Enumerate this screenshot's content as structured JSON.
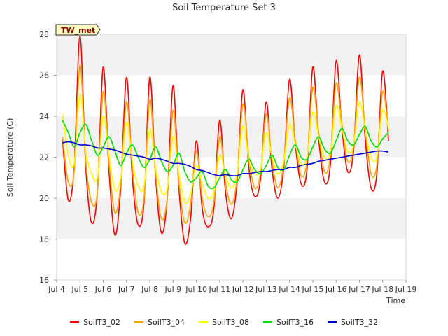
{
  "chart_data": {
    "type": "line",
    "title": "Soil Temperature Set 3",
    "xlabel": "Time",
    "ylabel": "Soil Temperature (C)",
    "station_badge": "TW_met",
    "x_tick_labels": [
      "Jul 4",
      "Jul 5",
      "Jul 6",
      "Jul 7",
      "Jul 8",
      "Jul 9",
      "Jul 10",
      "Jul 11",
      "Jul 12",
      "Jul 13",
      "Jul 14",
      "Jul 15",
      "Jul 16",
      "Jul 17",
      "Jul 18",
      "Jul 19"
    ],
    "x_range_days": [
      4,
      19
    ],
    "y_ticks": [
      16,
      18,
      20,
      22,
      24,
      26,
      28
    ],
    "ylim": [
      16,
      28
    ],
    "grid": "horizontal alternating bands",
    "legend_position": "bottom",
    "time_step_days": 0.25,
    "series": [
      {
        "name": "SoilT3_02",
        "color": "#ff0000",
        "x_start_day": 4.25,
        "values": [
          22.9,
          19.9,
          21.5,
          27.9,
          21.5,
          18.8,
          20.3,
          26.4,
          21.3,
          18.2,
          20.5,
          25.9,
          21.0,
          18.7,
          19.8,
          25.9,
          21.0,
          18.3,
          20.0,
          25.5,
          20.5,
          17.8,
          19.0,
          22.8,
          19.5,
          18.6,
          19.5,
          23.8,
          20.3,
          19.0,
          20.8,
          25.3,
          21.5,
          20.1,
          20.9,
          24.7,
          21.4,
          20.0,
          21.5,
          25.8,
          22.6,
          20.7,
          21.4,
          26.4,
          22.9,
          20.8,
          21.6,
          26.7,
          23.4,
          21.3,
          22.3,
          27.0,
          22.9,
          20.5,
          21.2,
          26.2,
          22.8
        ]
      },
      {
        "name": "SoilT3_04",
        "color": "#ffa500",
        "x_start_day": 4.25,
        "values": [
          23.0,
          20.8,
          21.3,
          26.5,
          21.8,
          19.8,
          20.3,
          25.2,
          21.7,
          19.3,
          20.7,
          24.7,
          21.5,
          19.3,
          20.0,
          24.8,
          21.2,
          19.0,
          20.0,
          24.3,
          20.8,
          18.8,
          19.7,
          22.3,
          20.0,
          19.1,
          19.8,
          23.0,
          20.8,
          19.7,
          21.0,
          24.6,
          22.0,
          20.5,
          21.2,
          24.1,
          21.8,
          20.5,
          21.7,
          24.9,
          22.8,
          21.1,
          21.8,
          25.4,
          23.2,
          21.3,
          22.0,
          25.6,
          23.6,
          21.8,
          22.5,
          25.9,
          23.4,
          21.2,
          21.6,
          25.2,
          23.2
        ]
      },
      {
        "name": "SoilT3_08",
        "color": "#ffff00",
        "x_start_day": 4.25,
        "values": [
          24.1,
          22.1,
          21.7,
          25.1,
          22.3,
          21.2,
          21.0,
          24.0,
          22.1,
          20.4,
          21.0,
          23.7,
          21.8,
          20.6,
          20.6,
          23.4,
          21.5,
          20.3,
          20.5,
          23.0,
          21.2,
          19.8,
          20.2,
          21.6,
          20.7,
          20.0,
          20.3,
          22.1,
          21.1,
          20.5,
          21.2,
          23.5,
          21.9,
          21.2,
          21.4,
          23.2,
          22.0,
          21.2,
          21.8,
          23.6,
          22.6,
          21.7,
          22.0,
          24.2,
          23.0,
          22.0,
          22.2,
          24.5,
          23.4,
          22.3,
          22.6,
          24.7,
          23.3,
          22.0,
          22.0,
          24.3,
          23.4
        ]
      },
      {
        "name": "SoilT3_16",
        "color": "#00dd00",
        "x_start_day": 4.25,
        "values": [
          23.8,
          23.2,
          22.5,
          23.2,
          23.6,
          22.8,
          22.1,
          22.5,
          23.0,
          22.3,
          21.6,
          22.2,
          22.6,
          22.0,
          21.5,
          21.9,
          22.5,
          21.8,
          21.3,
          21.6,
          22.2,
          21.3,
          20.8,
          21.0,
          21.3,
          20.6,
          20.5,
          21.0,
          21.4,
          20.9,
          20.8,
          21.4,
          21.9,
          21.4,
          21.2,
          21.6,
          22.1,
          21.5,
          21.4,
          22.1,
          22.6,
          22.0,
          21.9,
          22.5,
          23.0,
          22.4,
          22.2,
          22.8,
          23.4,
          22.8,
          22.6,
          23.1,
          23.5,
          22.8,
          22.5,
          22.9,
          23.2
        ]
      },
      {
        "name": "SoilT3_32",
        "color": "#0000cc",
        "x_start_day": 4.25,
        "values": [
          22.7,
          22.75,
          22.7,
          22.6,
          22.6,
          22.55,
          22.45,
          22.45,
          22.4,
          22.35,
          22.25,
          22.15,
          22.1,
          22.05,
          22.0,
          21.9,
          21.95,
          21.9,
          21.8,
          21.7,
          21.7,
          21.65,
          21.55,
          21.4,
          21.35,
          21.25,
          21.15,
          21.1,
          21.15,
          21.1,
          21.1,
          21.2,
          21.2,
          21.25,
          21.3,
          21.3,
          21.35,
          21.4,
          21.4,
          21.5,
          21.5,
          21.6,
          21.65,
          21.7,
          21.8,
          21.85,
          21.9,
          21.95,
          22.0,
          22.05,
          22.1,
          22.15,
          22.2,
          22.25,
          22.3,
          22.3,
          22.25
        ]
      }
    ]
  }
}
